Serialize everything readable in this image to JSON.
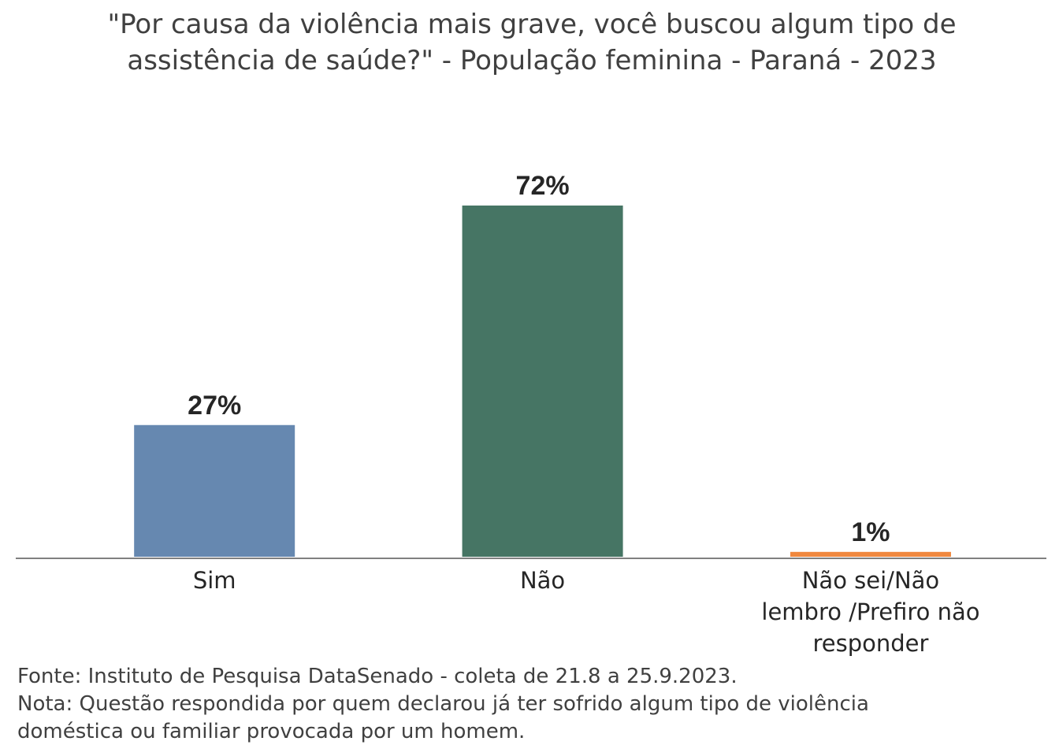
{
  "chart_data": {
    "type": "bar",
    "title": "\"Por causa da violência mais grave, você buscou algum tipo de assistência de saúde?\" - População feminina - Paraná - 2023",
    "categories": [
      "Sim",
      "Não",
      "Não sei/Não lembro /Prefiro não responder"
    ],
    "category_lines": [
      [
        "Sim"
      ],
      [
        "Não"
      ],
      [
        "Não sei/Não",
        "lembro /Prefiro não",
        "responder"
      ]
    ],
    "values": [
      27,
      72,
      1
    ],
    "value_labels": [
      "27%",
      "72%",
      "1%"
    ],
    "colors": [
      "#6688B0",
      "#467564",
      "#F0883E"
    ],
    "ylim": [
      0,
      72
    ],
    "xlabel": "",
    "ylabel": "",
    "grid": false,
    "axis_color": "#808080"
  },
  "footer": {
    "source": "Fonte: Instituto de Pesquisa DataSenado - coleta de 21.8 a 25.9.2023.",
    "note_line1": "Nota: Questão respondida por quem declarou já ter sofrido algum tipo de violência",
    "note_line2": "doméstica ou familiar provocada por um homem."
  }
}
